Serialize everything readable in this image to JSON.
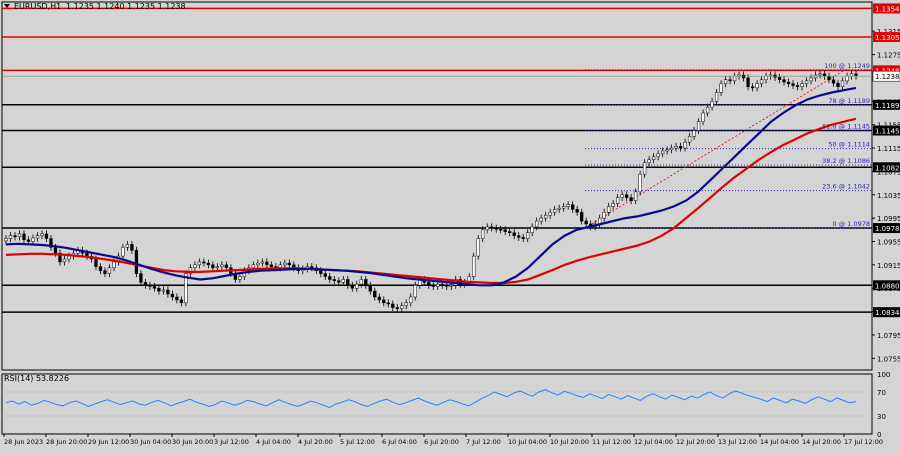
{
  "header": {
    "symbol_label": "EURUSD,H1",
    "ohlc": "1.1235 1.1240 1.1235 1.1238"
  },
  "rsi": {
    "label": "RSI(14) 53.8226",
    "levels": [
      100,
      70,
      30,
      0
    ],
    "values": [
      52,
      55,
      50,
      54,
      48,
      51,
      56,
      53,
      49,
      47,
      52,
      55,
      51,
      46,
      50,
      54,
      57,
      53,
      49,
      52,
      55,
      50,
      48,
      53,
      56,
      52,
      47,
      51,
      54,
      58,
      53,
      50,
      46,
      49,
      55,
      52,
      48,
      51,
      56,
      54,
      50,
      47,
      52,
      57,
      53,
      49,
      46,
      50,
      55,
      52,
      48,
      44,
      50,
      53,
      57,
      54,
      49,
      46,
      51,
      55,
      58,
      53,
      49,
      52,
      56,
      60,
      55,
      51,
      48,
      53,
      57,
      54,
      50,
      47,
      53,
      59,
      64,
      70,
      66,
      62,
      68,
      72,
      67,
      63,
      70,
      74,
      69,
      65,
      71,
      68,
      64,
      61,
      67,
      63,
      59,
      66,
      62,
      58,
      64,
      60,
      56,
      63,
      67,
      62,
      58,
      65,
      61,
      57,
      63,
      60,
      66,
      70,
      64,
      60,
      67,
      72,
      68,
      64,
      61,
      58,
      54,
      60,
      56,
      52,
      58,
      55,
      51,
      57,
      62,
      58,
      54,
      60,
      56,
      52,
      54
    ]
  },
  "price_axis": {
    "ticks": [
      "1.1315",
      "1.1275",
      "1.1235",
      "1.1195",
      "1.1155",
      "1.1115",
      "1.1075",
      "1.1035",
      "1.0995",
      "1.0955",
      "1.0915",
      "1.0875",
      "1.0835",
      "1.0795",
      "1.0755"
    ]
  },
  "time_axis": {
    "labels": [
      "28 Jun 2023",
      "28 Jun 20:00",
      "29 Jun 12:00",
      "30 Jun 04:00",
      "30 Jun 20:00",
      "3 Jul 12:00",
      "4 Jul 04:00",
      "4 Jul 20:00",
      "5 Jul 12:00",
      "6 Jul 04:00",
      "6 Jul 20:00",
      "7 Jul 12:00",
      "10 Jul 04:00",
      "10 Jul 20:00",
      "11 Jul 12:00",
      "12 Jul 04:00",
      "12 Jul 20:00",
      "13 Jul 12:00",
      "14 Jul 04:00",
      "14 Jul 20:00",
      "17 Jul 12:00"
    ]
  },
  "colors": {
    "support_resistance": "#000000",
    "resistance_red": "#e00000",
    "ema_fast": "#0a0a8c",
    "ema_slow": "#e00000",
    "fib": "#2a2ab0",
    "rsi": "#2a7fff",
    "candle_up": "#ffffff",
    "candle_down": "#000000",
    "tag_red": "#e00000"
  },
  "chart_data": {
    "type": "candlestick",
    "title": "EURUSD,H1",
    "ylim": [
      1.0735,
      1.1365
    ],
    "horizontal_levels": [
      {
        "price": 1.1354,
        "label": "1.1354",
        "style": "red"
      },
      {
        "price": 1.1305,
        "label": "1.1305",
        "style": "red"
      },
      {
        "price": 1.1248,
        "label": "1.1248",
        "style": "red"
      },
      {
        "price": 1.1189,
        "label": "1.1189",
        "style": "black"
      },
      {
        "price": 1.1145,
        "label": "1.1145",
        "style": "black"
      },
      {
        "price": 1.1082,
        "label": "1.1082",
        "style": "black"
      },
      {
        "price": 1.0978,
        "label": "1.0978",
        "style": "black"
      },
      {
        "price": 1.088,
        "label": "1.0880",
        "style": "black"
      },
      {
        "price": 1.0834,
        "label": "1.0834",
        "style": "black"
      }
    ],
    "current_price": {
      "price": 1.1238,
      "label": "1.1238"
    },
    "fibonacci": [
      {
        "price": 1.1249,
        "label": "100 @ 1.1249"
      },
      {
        "price": 1.1189,
        "label": "78 @ 1.1189"
      },
      {
        "price": 1.1145,
        "label": "61.8 @ 1.1145"
      },
      {
        "price": 1.1114,
        "label": "50 @ 1.1114"
      },
      {
        "price": 1.1086,
        "label": "38.2 @ 1.1086"
      },
      {
        "price": 1.1042,
        "label": "23.6 @ 1.1042"
      },
      {
        "price": 1.0978,
        "label": "0 @ 1.0978"
      }
    ],
    "close": [
      1.096,
      1.0965,
      1.0963,
      1.0968,
      1.0958,
      1.0955,
      1.0961,
      1.0965,
      1.0968,
      1.096,
      1.0945,
      1.0935,
      1.092,
      1.0925,
      1.093,
      1.0935,
      1.094,
      1.0935,
      1.093,
      1.0925,
      1.0912,
      1.0905,
      1.09,
      1.091,
      1.092,
      1.093,
      1.0945,
      1.095,
      1.094,
      1.09,
      1.0885,
      1.088,
      1.0878,
      1.0875,
      1.087,
      1.0872,
      1.0865,
      1.086,
      1.0855,
      1.085,
      1.09,
      1.091,
      1.0915,
      1.092,
      1.0918,
      1.0915,
      1.091,
      1.0912,
      1.0915,
      1.091,
      1.09,
      1.089,
      1.0895,
      1.0905,
      1.091,
      1.0915,
      1.0918,
      1.092,
      1.0915,
      1.0912,
      1.091,
      1.0915,
      1.0918,
      1.0915,
      1.091,
      1.0905,
      1.0908,
      1.0912,
      1.091,
      1.0905,
      1.09,
      1.0895,
      1.089,
      1.0888,
      1.0885,
      1.089,
      1.088,
      1.0875,
      1.0882,
      1.089,
      1.088,
      1.087,
      1.086,
      1.0855,
      1.085,
      1.0848,
      1.0842,
      1.084,
      1.0845,
      1.085,
      1.086,
      1.088,
      1.089,
      1.0885,
      1.088,
      1.0878,
      1.0882,
      1.088,
      1.0878,
      1.088,
      1.089,
      1.0882,
      1.0885,
      1.0895,
      1.093,
      1.096,
      1.0975,
      1.098,
      1.0978,
      1.0976,
      1.0975,
      1.0972,
      1.097,
      1.0965,
      1.0962,
      1.096,
      1.097,
      1.098,
      1.099,
      1.0995,
      1.1,
      1.1005,
      1.101,
      1.1012,
      1.1015,
      1.1018,
      1.101,
      1.1005,
      1.099,
      1.0985,
      1.098,
      1.0985,
      1.0995,
      1.1005,
      1.1015,
      1.102,
      1.103,
      1.1035,
      1.103,
      1.1025,
      1.104,
      1.107,
      1.109,
      1.1095,
      1.11,
      1.1105,
      1.111,
      1.1112,
      1.1115,
      1.1118,
      1.1115,
      1.1125,
      1.1135,
      1.1145,
      1.116,
      1.1175,
      1.1185,
      1.1195,
      1.121,
      1.1225,
      1.1232,
      1.123,
      1.1238,
      1.124,
      1.1235,
      1.122,
      1.1218,
      1.1225,
      1.1232,
      1.1238,
      1.124,
      1.1236,
      1.1232,
      1.1228,
      1.1225,
      1.1222,
      1.122,
      1.1225,
      1.123,
      1.1235,
      1.124,
      1.1242,
      1.1238,
      1.1232,
      1.1226,
      1.122,
      1.123,
      1.1238,
      1.1242,
      1.1238
    ],
    "ema_fast": [
      1.095,
      1.0951,
      1.095,
      1.0949,
      1.0947,
      1.0944,
      1.094,
      1.0936,
      1.0932,
      1.0928,
      1.0922,
      1.0915,
      1.0908,
      1.0902,
      1.0897,
      1.0893,
      1.089,
      1.0892,
      1.0896,
      1.09,
      1.0903,
      1.0905,
      1.0906,
      1.0907,
      1.0908,
      1.0908,
      1.0907,
      1.0906,
      1.0905,
      1.0903,
      1.0901,
      1.0898,
      1.0895,
      1.0892,
      1.089,
      1.0888,
      1.0886,
      1.0884,
      1.0882,
      1.088,
      1.088,
      1.0885,
      1.0895,
      1.091,
      1.093,
      1.095,
      1.0965,
      1.0975,
      1.098,
      1.0985,
      1.099,
      1.0995,
      1.0998,
      1.1003,
      1.1008,
      1.1015,
      1.1025,
      1.104,
      1.106,
      1.108,
      1.11,
      1.112,
      1.114,
      1.116,
      1.1175,
      1.1188,
      1.1198,
      1.1205,
      1.121,
      1.1214,
      1.1218
    ],
    "ema_slow": [
      1.0932,
      1.0933,
      1.0934,
      1.0934,
      1.0933,
      1.0932,
      1.093,
      1.0928,
      1.0925,
      1.0922,
      1.0918,
      1.0914,
      1.091,
      1.0906,
      1.0904,
      1.0903,
      1.0903,
      1.0904,
      1.0905,
      1.0906,
      1.0907,
      1.0908,
      1.0909,
      1.0909,
      1.0909,
      1.0908,
      1.0907,
      1.0906,
      1.0905,
      1.0904,
      1.0902,
      1.09,
      1.0898,
      1.0896,
      1.0894,
      1.0892,
      1.089,
      1.0888,
      1.0886,
      1.0885,
      1.0884,
      1.0884,
      1.0886,
      1.089,
      1.0898,
      1.0906,
      1.0915,
      1.0922,
      1.0928,
      1.0933,
      1.0938,
      1.0943,
      1.0948,
      1.0955,
      1.0965,
      1.0978,
      1.0995,
      1.1012,
      1.103,
      1.1048,
      1.1065,
      1.108,
      1.1095,
      1.1108,
      1.112,
      1.113,
      1.114,
      1.1148,
      1.1155,
      1.116,
      1.1165
    ]
  }
}
